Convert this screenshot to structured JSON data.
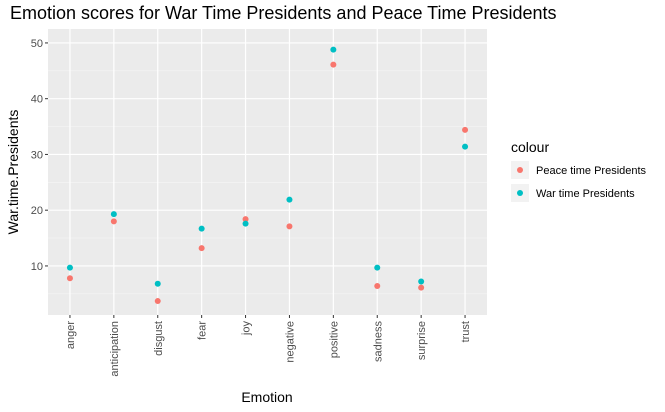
{
  "chart_data": {
    "type": "scatter",
    "title": "Emotion scores for War Time Presidents and Peace Time Presidents",
    "xlabel": "Emotion",
    "ylabel": "War.time.Presidents",
    "categories": [
      "anger",
      "anticipation",
      "disgust",
      "fear",
      "joy",
      "negative",
      "positive",
      "sadness",
      "surprise",
      "trust"
    ],
    "ylim": [
      1.2,
      52.5
    ],
    "yticks": [
      10,
      20,
      30,
      40,
      50
    ],
    "grid": true,
    "legend": {
      "title": "colour",
      "position": "right"
    },
    "series": [
      {
        "name": "Peace time Presidents",
        "color": "#F8766D",
        "values": [
          7.8,
          18.0,
          3.7,
          13.2,
          18.4,
          17.1,
          46.1,
          6.4,
          6.1,
          34.4
        ]
      },
      {
        "name": "War time Presidents",
        "color": "#00BFC4",
        "values": [
          9.7,
          19.3,
          6.8,
          16.7,
          17.6,
          21.9,
          48.8,
          9.7,
          7.2,
          31.4
        ]
      }
    ]
  }
}
